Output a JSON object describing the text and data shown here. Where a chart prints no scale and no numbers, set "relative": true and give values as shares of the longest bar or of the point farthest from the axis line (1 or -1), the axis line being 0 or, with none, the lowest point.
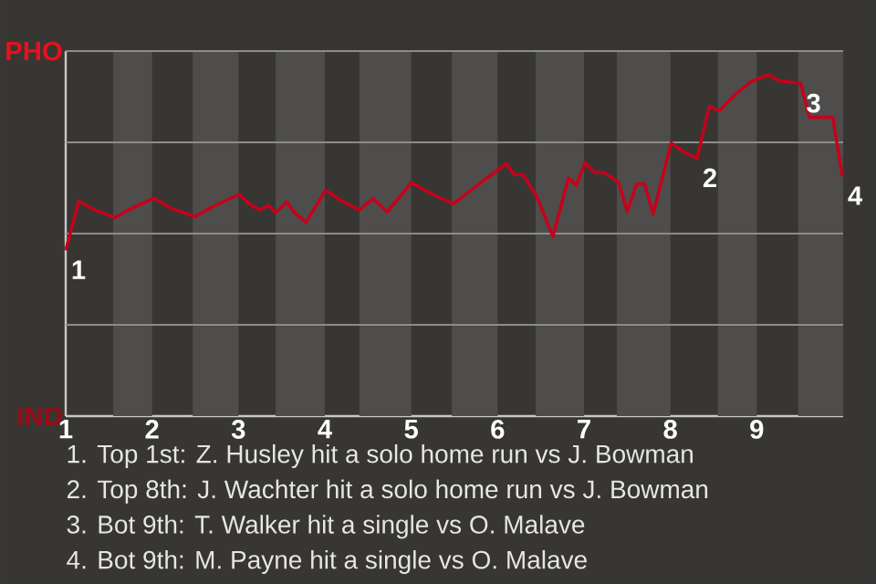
{
  "chart_data": {
    "type": "line",
    "relative": true,
    "x": [
      1.0,
      1.15,
      1.33,
      1.57,
      1.73,
      2.02,
      2.22,
      2.5,
      2.7,
      3.01,
      3.12,
      3.24,
      3.35,
      3.43,
      3.56,
      3.65,
      3.78,
      4.01,
      4.21,
      4.4,
      4.56,
      4.72,
      5.0,
      5.28,
      5.49,
      5.83,
      6.1,
      6.19,
      6.29,
      6.45,
      6.64,
      6.82,
      6.91,
      7.01,
      7.12,
      7.23,
      7.4,
      7.5,
      7.61,
      7.7,
      7.8,
      8.01,
      8.15,
      8.31,
      8.45,
      8.57,
      8.75,
      8.95,
      9.13,
      9.26,
      9.51,
      9.61,
      9.88,
      9.99
    ],
    "series": [
      {
        "color": "#c8001a",
        "values": [
          0.486,
          0.63,
          0.605,
          0.582,
          0.605,
          0.639,
          0.609,
          0.585,
          0.614,
          0.65,
          0.623,
          0.605,
          0.618,
          0.596,
          0.628,
          0.596,
          0.568,
          0.662,
          0.628,
          0.605,
          0.638,
          0.598,
          0.684,
          0.646,
          0.623,
          0.689,
          0.74,
          0.708,
          0.708,
          0.646,
          0.526,
          0.698,
          0.676,
          0.743,
          0.714,
          0.714,
          0.686,
          0.6,
          0.681,
          0.681,
          0.593,
          0.801,
          0.775,
          0.756,
          0.908,
          0.895,
          0.943,
          0.983,
          1,
          0.983,
          0.975,
          0.876,
          0.876,
          0.703
        ]
      }
    ],
    "xlim": [
      1,
      10
    ],
    "xticks": [
      1,
      2,
      3,
      4,
      5,
      6,
      7,
      8,
      9
    ],
    "grid": "y",
    "bands": [
      {
        "axis": "x",
        "from": 1.55,
        "to": 2,
        "color": "#4e4d4b"
      },
      {
        "axis": "x",
        "from": 2.47,
        "to": 3,
        "color": "#4e4d4b"
      },
      {
        "axis": "x",
        "from": 3.43,
        "to": 4,
        "color": "#4e4d4b"
      },
      {
        "axis": "x",
        "from": 4.4,
        "to": 5,
        "color": "#4e4d4b"
      },
      {
        "axis": "x",
        "from": 5.47,
        "to": 6,
        "color": "#4e4d4b"
      },
      {
        "axis": "x",
        "from": 6.44,
        "to": 7,
        "color": "#4e4d4b"
      },
      {
        "axis": "x",
        "from": 7.38,
        "to": 8,
        "color": "#4e4d4b"
      },
      {
        "axis": "x",
        "from": 8.55,
        "to": 9,
        "color": "#4e4d4b"
      },
      {
        "axis": "x",
        "from": 9.48,
        "to": 10,
        "color": "#4e4d4b"
      }
    ],
    "annotations": [
      {
        "text": "1",
        "x": 1.0,
        "y": 0.486
      },
      {
        "text": "2",
        "x": 8.31,
        "y": 0.756
      },
      {
        "text": "3",
        "x": 9.51,
        "y": 0.975
      },
      {
        "text": "4",
        "x": 9.99,
        "y": 0.703
      },
      "PHO",
      "IND",
      "1. Top 1st: Z. Husley hit a solo home run vs J. Bowman",
      "2. Top 8th: J. Wachter hit a solo home run vs J. Bowman",
      "3. Bot 9th: T. Walker hit a single vs O. Malave",
      "4. Bot 9th: M. Payne hit a single vs O. Malave"
    ]
  }
}
